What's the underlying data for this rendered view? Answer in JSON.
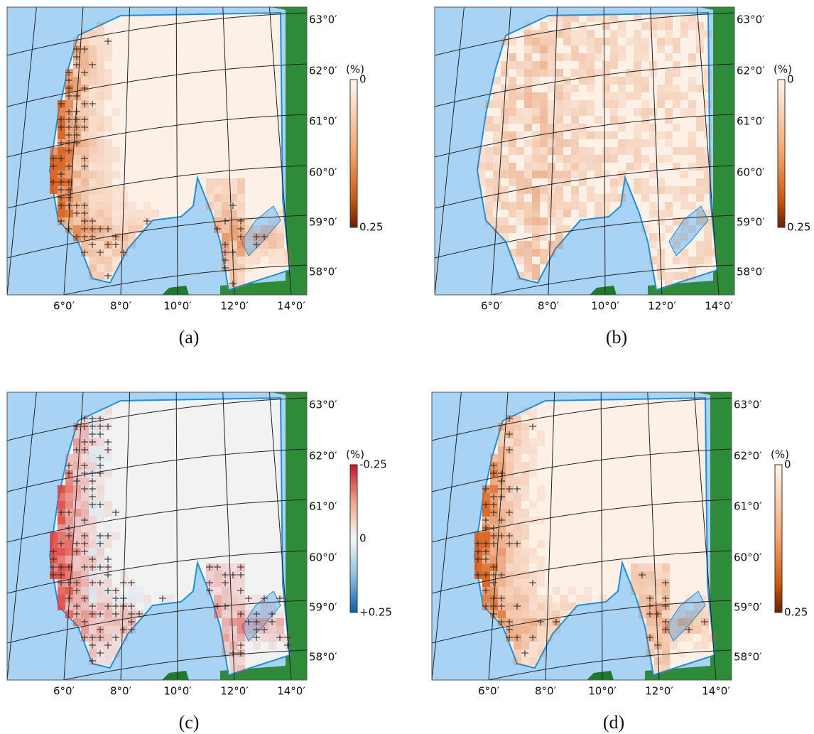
{
  "map_axes": {
    "lat_labels": [
      "63°0′",
      "62°0′",
      "61°0′",
      "60°0′",
      "59°0′",
      "58°0′"
    ],
    "lon_labels": [
      "6°0′",
      "8°0′",
      "10°0′",
      "12°0′",
      "14°0′"
    ]
  },
  "panels": [
    {
      "caption": "(a)",
      "colorbar": {
        "unit": "(%)",
        "labels": [
          "0",
          "0.25"
        ]
      }
    },
    {
      "caption": "(b)",
      "colorbar": {
        "unit": "(%)",
        "labels": [
          "0",
          "0.25"
        ]
      }
    },
    {
      "caption": "(c)",
      "colorbar": {
        "unit": "(%)",
        "labels": [
          "-0.25",
          "0",
          "+0.25"
        ]
      }
    },
    {
      "caption": "(d)",
      "colorbar": {
        "unit": "(%)",
        "labels": [
          "0",
          "0.25"
        ]
      }
    }
  ]
}
